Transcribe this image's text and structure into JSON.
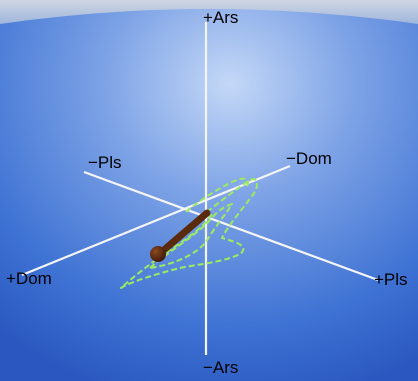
{
  "axes": {
    "ars_pos": "+Ars",
    "ars_neg": "−Ars",
    "pls_pos": "+Pls",
    "pls_neg": "−Pls",
    "dom_pos": "+Dom",
    "dom_neg": "−Dom"
  },
  "colors": {
    "background_light": "#a9c4ee",
    "background_dark": "#2c5fc8",
    "axis_line": "#f2f2f2",
    "trace": "#9bea63",
    "pointer": "#5a2a0c",
    "pointer_head": "#4a1f08"
  }
}
